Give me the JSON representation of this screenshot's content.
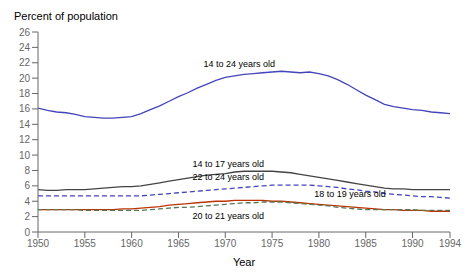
{
  "chart_data": {
    "type": "line",
    "xlabel": "Year",
    "ylabel": "Percent of population",
    "x": [
      1950,
      1951,
      1952,
      1953,
      1954,
      1955,
      1956,
      1957,
      1958,
      1959,
      1960,
      1961,
      1962,
      1963,
      1964,
      1965,
      1966,
      1967,
      1968,
      1969,
      1970,
      1971,
      1972,
      1973,
      1974,
      1975,
      1976,
      1977,
      1978,
      1979,
      1980,
      1981,
      1982,
      1983,
      1984,
      1985,
      1986,
      1987,
      1988,
      1989,
      1990,
      1991,
      1992,
      1993,
      1994
    ],
    "series": [
      {
        "color": "#4444bb",
        "line_style": "solid",
        "values": [
          16.1,
          15.8,
          15.6,
          15.5,
          15.3,
          15.0,
          14.9,
          14.8,
          14.8,
          14.9,
          15.0,
          15.4,
          15.9,
          16.4,
          17.0,
          17.6,
          18.1,
          18.7,
          19.2,
          19.7,
          20.1,
          20.3,
          20.5,
          20.6,
          20.7,
          20.8,
          20.9,
          20.8,
          20.7,
          20.8,
          20.6,
          20.3,
          19.8,
          19.2,
          18.5,
          17.8,
          17.2,
          16.6,
          16.3,
          16.1,
          15.9,
          15.8,
          15.6,
          15.5,
          15.4
        ]
      },
      {
        "color": "#444444",
        "line_style": "solid",
        "values": [
          5.5,
          5.4,
          5.4,
          5.5,
          5.5,
          5.5,
          5.6,
          5.7,
          5.8,
          5.9,
          5.9,
          6.0,
          6.2,
          6.4,
          6.6,
          6.8,
          7.0,
          7.2,
          7.4,
          7.5,
          7.6,
          7.8,
          7.9,
          7.9,
          7.9,
          7.9,
          7.8,
          7.7,
          7.5,
          7.3,
          7.1,
          6.9,
          6.7,
          6.5,
          6.3,
          6.1,
          5.9,
          5.7,
          5.6,
          5.6,
          5.5,
          5.5,
          5.5,
          5.5,
          5.5
        ]
      },
      {
        "color": "#4444bb",
        "line_style": "dashed",
        "values": [
          4.7,
          4.7,
          4.7,
          4.7,
          4.7,
          4.7,
          4.7,
          4.7,
          4.7,
          4.7,
          4.7,
          4.7,
          4.8,
          4.9,
          5.0,
          5.1,
          5.2,
          5.3,
          5.4,
          5.5,
          5.6,
          5.7,
          5.8,
          5.9,
          6.0,
          6.1,
          6.1,
          6.1,
          6.1,
          6.1,
          6.0,
          5.9,
          5.8,
          5.6,
          5.5,
          5.3,
          5.2,
          5.0,
          4.9,
          4.8,
          4.7,
          4.6,
          4.6,
          4.5,
          4.4
        ]
      },
      {
        "color": "#bb3300",
        "line_style": "solid",
        "values": [
          2.9,
          2.9,
          2.9,
          2.9,
          2.9,
          2.9,
          2.9,
          2.9,
          2.9,
          3.0,
          3.0,
          3.1,
          3.2,
          3.3,
          3.5,
          3.6,
          3.7,
          3.8,
          3.9,
          4.0,
          4.0,
          4.1,
          4.1,
          4.1,
          4.1,
          4.0,
          4.0,
          3.9,
          3.8,
          3.7,
          3.6,
          3.5,
          3.4,
          3.3,
          3.2,
          3.1,
          3.0,
          2.9,
          2.9,
          2.8,
          2.8,
          2.8,
          2.7,
          2.7,
          2.7
        ]
      },
      {
        "color": "#557755",
        "line_style": "dashed",
        "values": [
          2.9,
          2.9,
          2.9,
          2.9,
          2.9,
          2.8,
          2.8,
          2.8,
          2.8,
          2.8,
          2.8,
          2.8,
          2.9,
          3.0,
          3.1,
          3.2,
          3.2,
          3.3,
          3.4,
          3.5,
          3.6,
          3.7,
          3.8,
          3.8,
          3.9,
          3.9,
          3.9,
          3.8,
          3.7,
          3.6,
          3.5,
          3.4,
          3.2,
          3.1,
          3.0,
          2.9,
          2.9,
          2.9,
          2.9,
          2.9,
          2.9,
          2.8,
          2.8,
          2.8,
          2.8
        ]
      }
    ],
    "annotations": [
      {
        "text": "14 to 24 years old",
        "x": 1971.5,
        "y": 21.4
      },
      {
        "text": "14 to 17 years old",
        "x": 1966.5,
        "y": 8.5
      },
      {
        "text": "22 to 24 years old",
        "x": 1966.5,
        "y": 6.7
      },
      {
        "text": "18 to 19 years old",
        "x": 1979.5,
        "y": 4.6
      },
      {
        "text": "20 to 21 years old",
        "x": 1966.5,
        "y": 1.7
      }
    ],
    "xlim": [
      1950,
      1994
    ],
    "xticks": [
      1950,
      1955,
      1960,
      1965,
      1970,
      1975,
      1980,
      1985,
      1990,
      1994
    ],
    "ylim": [
      0,
      26
    ],
    "yticks": [
      0,
      2,
      4,
      6,
      8,
      10,
      12,
      14,
      16,
      18,
      20,
      22,
      24,
      26
    ],
    "grid": false
  }
}
